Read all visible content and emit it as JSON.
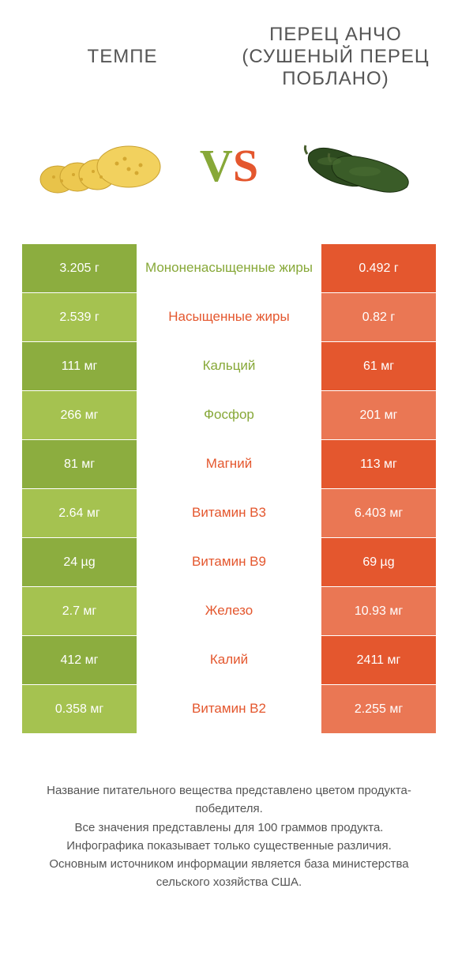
{
  "products": {
    "left": {
      "title": "ТЕМПЕ"
    },
    "right": {
      "title": "ПЕРЕЦ АНЧО (СУШЕНЫЙ ПЕРЕЦ ПОБЛАНО)"
    }
  },
  "vs": {
    "v": "V",
    "s": "S"
  },
  "colors": {
    "left_odd": "#8cad3f",
    "left_even": "#a5c250",
    "right_odd": "#e4572e",
    "right_even": "#ea7754",
    "text_white": "#ffffff",
    "title_color": "#555555",
    "green_text": "#87a838",
    "orange_text": "#e4572e"
  },
  "rows": [
    {
      "left": "3.205 г",
      "label": "Мононенасыщенные жиры",
      "right": "0.492 г",
      "winner": "left"
    },
    {
      "left": "2.539 г",
      "label": "Насыщенные жиры",
      "right": "0.82 г",
      "winner": "right"
    },
    {
      "left": "111 мг",
      "label": "Кальций",
      "right": "61 мг",
      "winner": "left"
    },
    {
      "left": "266 мг",
      "label": "Фосфор",
      "right": "201 мг",
      "winner": "left"
    },
    {
      "left": "81 мг",
      "label": "Магний",
      "right": "113 мг",
      "winner": "right"
    },
    {
      "left": "2.64 мг",
      "label": "Витамин B3",
      "right": "6.403 мг",
      "winner": "right"
    },
    {
      "left": "24 µg",
      "label": "Витамин B9",
      "right": "69 µg",
      "winner": "right"
    },
    {
      "left": "2.7 мг",
      "label": "Железо",
      "right": "10.93 мг",
      "winner": "right"
    },
    {
      "left": "412 мг",
      "label": "Калий",
      "right": "2411 мг",
      "winner": "right"
    },
    {
      "left": "0.358 мг",
      "label": "Витамин B2",
      "right": "2.255 мг",
      "winner": "right"
    }
  ],
  "footer": {
    "l1": "Название питательного вещества представлено цветом продукта-победителя.",
    "l2": "Все значения представлены для 100 граммов продукта.",
    "l3": "Инфографика показывает только существенные различия.",
    "l4": "Основным источником информации является база министерства сельского хозяйства США."
  }
}
